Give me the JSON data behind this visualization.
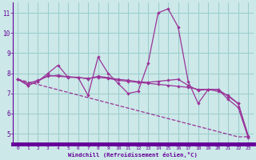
{
  "xlabel": "Windchill (Refroidissement éolien,°C)",
  "x": [
    0,
    1,
    2,
    3,
    4,
    5,
    6,
    7,
    8,
    9,
    10,
    11,
    12,
    13,
    14,
    15,
    16,
    17,
    18,
    19,
    20,
    21,
    22,
    23
  ],
  "line1": [
    7.7,
    7.4,
    7.6,
    8.0,
    8.4,
    7.8,
    7.8,
    6.9,
    8.8,
    8.0,
    7.5,
    7.0,
    7.1,
    8.5,
    11.0,
    11.2,
    10.3,
    7.6,
    6.5,
    7.2,
    7.2,
    6.7,
    6.3,
    4.8
  ],
  "line2": [
    7.7,
    7.4,
    7.6,
    7.9,
    7.85,
    7.82,
    7.78,
    7.75,
    7.8,
    7.75,
    7.65,
    7.6,
    7.55,
    7.5,
    7.45,
    7.4,
    7.35,
    7.3,
    7.2,
    7.2,
    7.1,
    6.9,
    6.5,
    4.85
  ],
  "line3": [
    7.7,
    7.5,
    7.65,
    7.85,
    7.9,
    7.82,
    7.8,
    7.72,
    7.85,
    7.78,
    7.7,
    7.65,
    7.58,
    7.55,
    7.6,
    7.65,
    7.7,
    7.4,
    7.15,
    7.2,
    7.2,
    6.85,
    6.5,
    4.9
  ],
  "line_trend": [
    7.7,
    7.57,
    7.44,
    7.31,
    7.18,
    7.05,
    6.92,
    6.79,
    6.66,
    6.53,
    6.4,
    6.27,
    6.14,
    6.01,
    5.88,
    5.75,
    5.62,
    5.49,
    5.36,
    5.23,
    5.1,
    4.97,
    4.84,
    4.85
  ],
  "color": "#993399",
  "bg_color": "#cce8e8",
  "grid_color": "#99cccc",
  "axis_bar_color": "#660099",
  "ylim": [
    4.5,
    11.5
  ],
  "xlim": [
    -0.5,
    23.5
  ],
  "yticks": [
    5,
    6,
    7,
    8,
    9,
    10,
    11
  ],
  "xticks": [
    0,
    1,
    2,
    3,
    4,
    5,
    6,
    7,
    8,
    9,
    10,
    11,
    12,
    13,
    14,
    15,
    16,
    17,
    18,
    19,
    20,
    21,
    22,
    23
  ],
  "tick_color": "#660099",
  "label_color": "#660099"
}
